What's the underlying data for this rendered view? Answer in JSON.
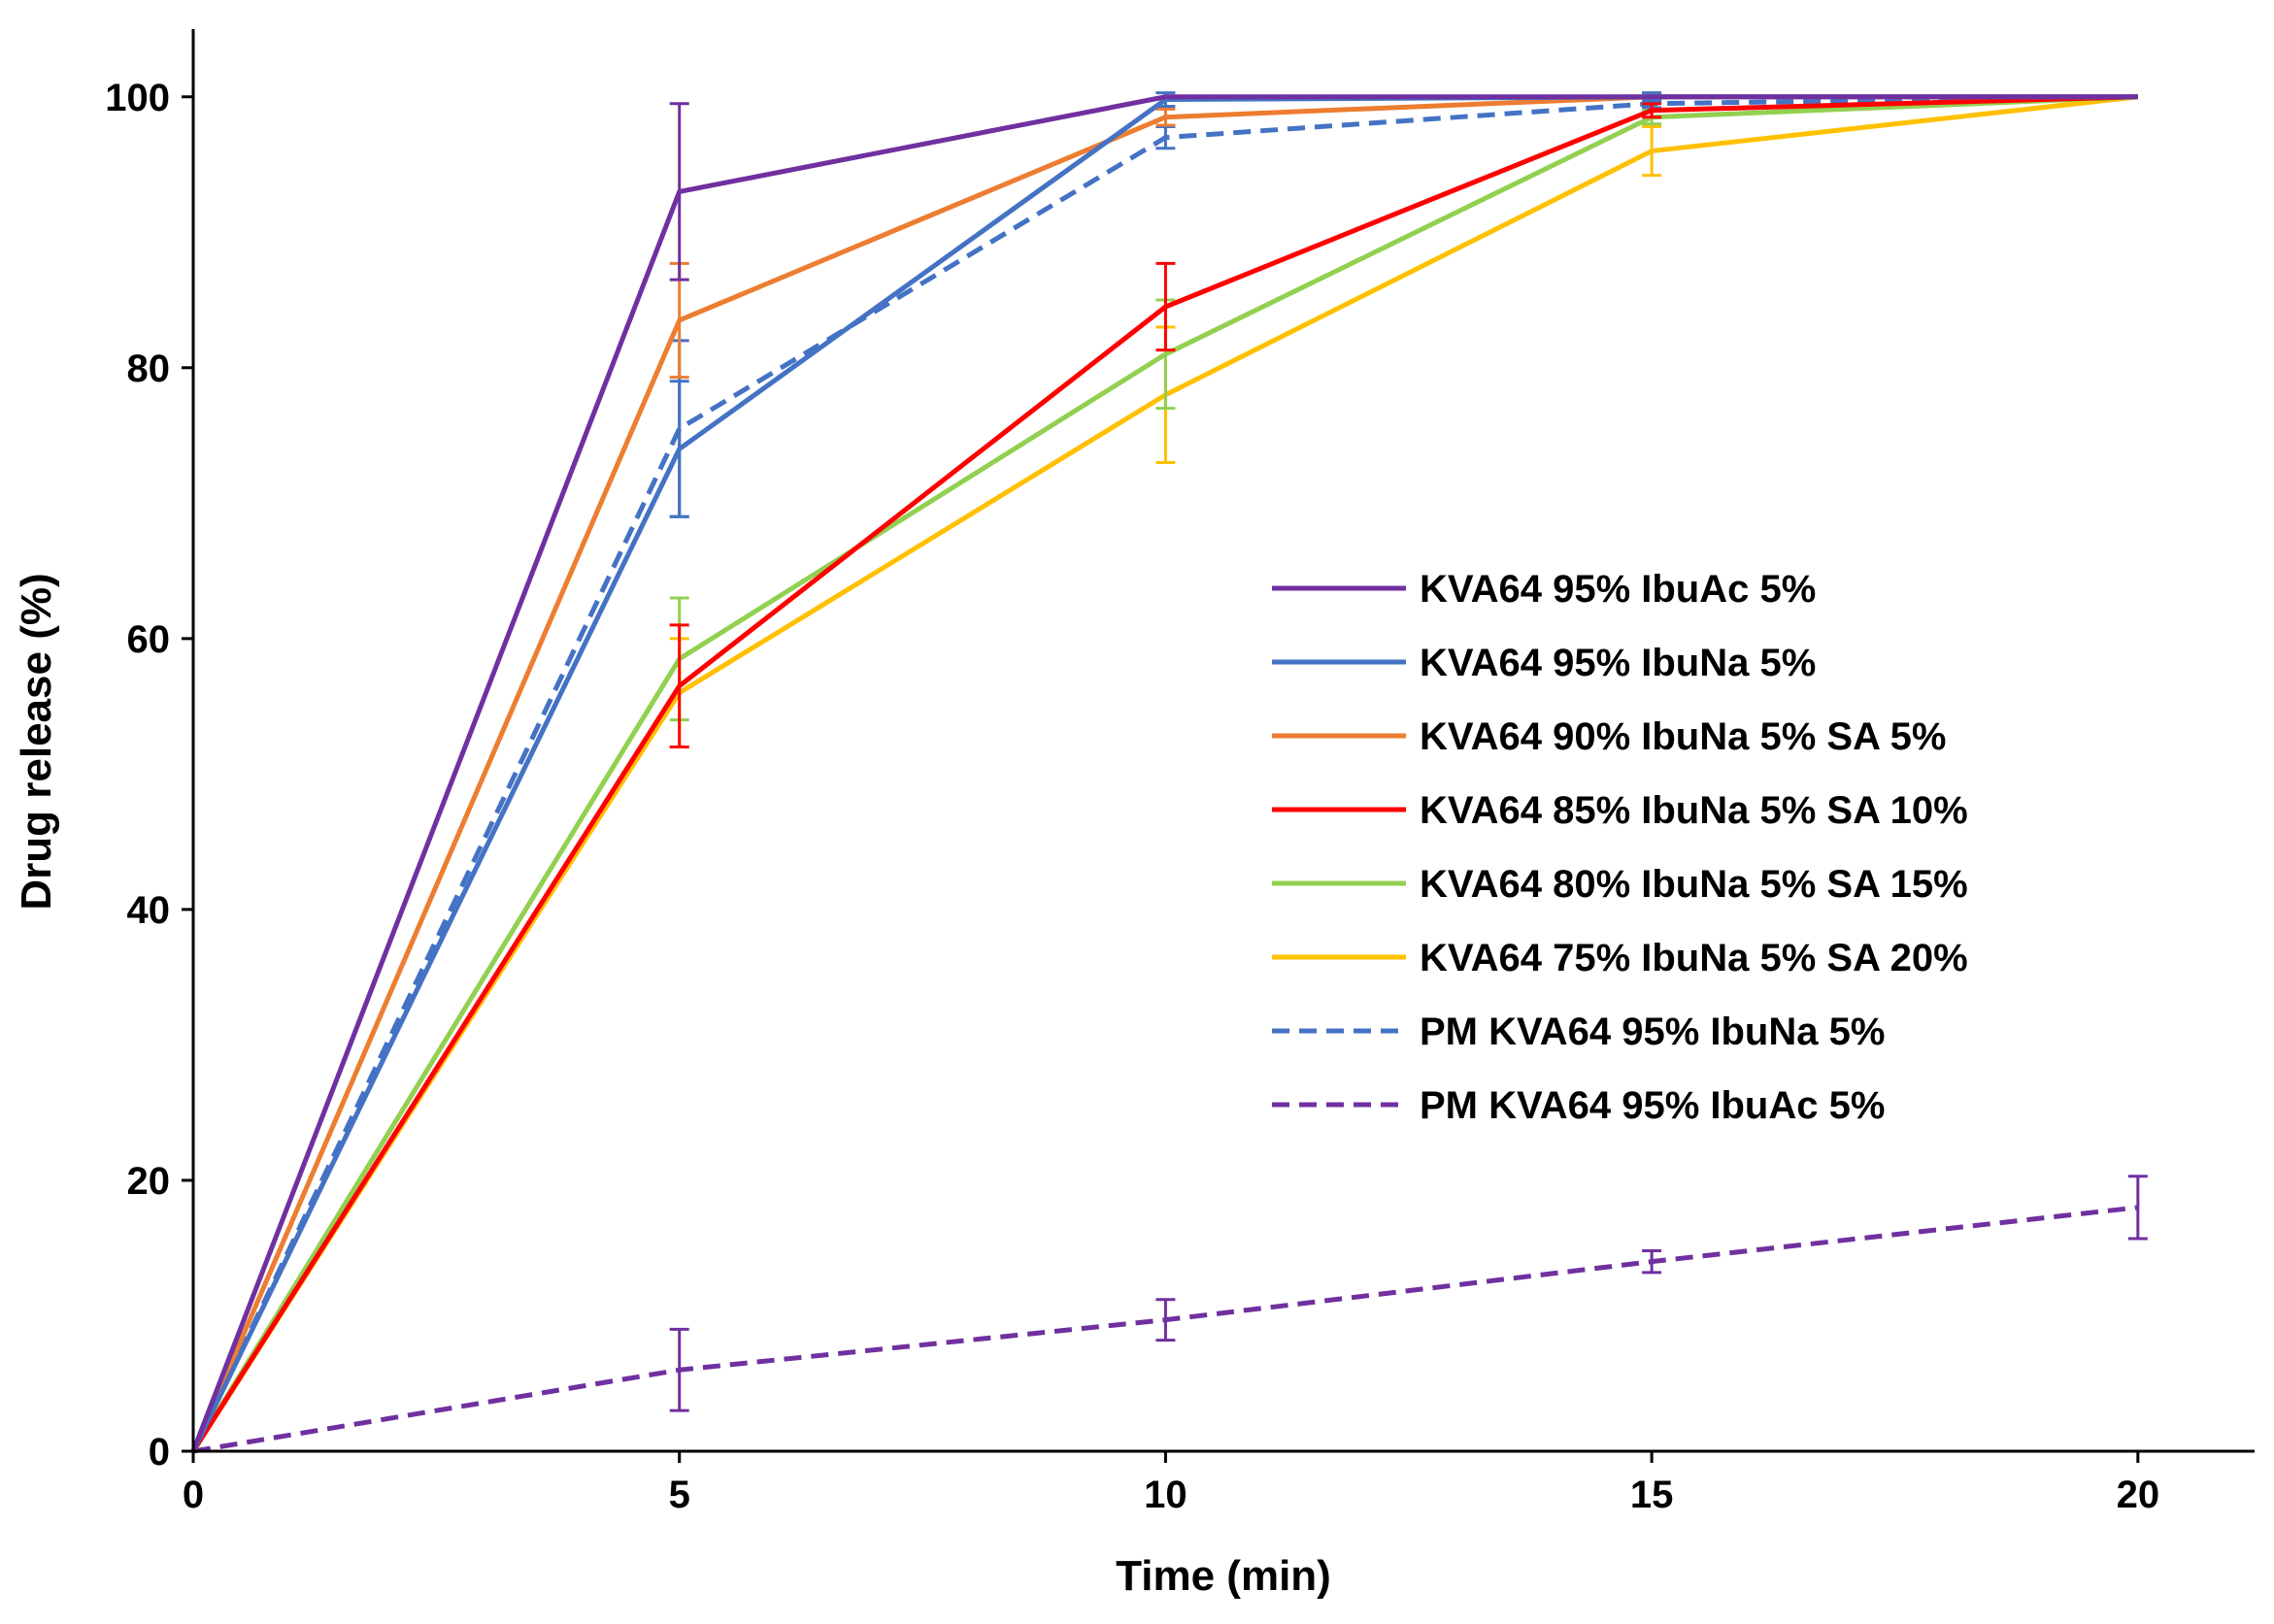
{
  "chart_data": {
    "type": "line",
    "title": "",
    "xlabel": "Time (min)",
    "ylabel": "Drug release (%)",
    "xlim": [
      0,
      21.2
    ],
    "ylim": [
      0,
      105
    ],
    "xticks": [
      0,
      5,
      10,
      15,
      20
    ],
    "yticks": [
      0,
      20,
      40,
      60,
      80,
      100
    ],
    "xtick_labels": [
      "0",
      "5",
      "10",
      "15",
      "20"
    ],
    "ytick_labels": [
      "0",
      "20",
      "40",
      "60",
      "80",
      "100"
    ],
    "grid": false,
    "legend_position": "center-right",
    "x": [
      0,
      5,
      10,
      15,
      20
    ],
    "series": [
      {
        "name": "KVA64 95% IbuAc 5%",
        "color": "#7030A0",
        "dash": "solid",
        "values": [
          0,
          93,
          100,
          100,
          100
        ],
        "errors": [
          0,
          6.5,
          0,
          0,
          0
        ]
      },
      {
        "name": "KVA64 95% IbuNa 5%",
        "color": "#4472C4",
        "dash": "solid",
        "values": [
          0,
          74,
          99.8,
          100,
          100
        ],
        "errors": [
          0,
          5,
          0.5,
          0.3,
          0
        ]
      },
      {
        "name": "KVA64 90% IbuNa 5% SA 5%",
        "color": "#ED7D31",
        "dash": "solid",
        "values": [
          0,
          83.5,
          98.5,
          100,
          100
        ],
        "errors": [
          0,
          4.2,
          0.6,
          0.3,
          0
        ]
      },
      {
        "name": "KVA64 85% IbuNa 5% SA 10%",
        "color": "#FF0000",
        "dash": "solid",
        "values": [
          0,
          56.5,
          84.5,
          99,
          100
        ],
        "errors": [
          0,
          4.5,
          3.2,
          0.5,
          0
        ]
      },
      {
        "name": "KVA64 80% IbuNa 5% SA 15%",
        "color": "#92D050",
        "dash": "solid",
        "values": [
          0,
          58.5,
          81,
          98.5,
          100
        ],
        "errors": [
          0,
          4.5,
          4,
          0.5,
          0
        ]
      },
      {
        "name": "KVA64 75% IbuNa 5% SA 20%",
        "color": "#FFC000",
        "dash": "solid",
        "values": [
          0,
          56,
          78,
          96,
          100
        ],
        "errors": [
          0,
          4,
          5,
          1.8,
          0
        ]
      },
      {
        "name": "PM KVA64 95% IbuNa 5%",
        "color": "#4472C4",
        "dash": "dashed",
        "values": [
          0,
          75.5,
          97,
          99.5,
          100
        ],
        "errors": [
          0,
          6.5,
          0.8,
          0.3,
          0
        ]
      },
      {
        "name": "PM KVA64 95% IbuAc 5%",
        "color": "#7030A0",
        "dash": "dashed",
        "values": [
          0,
          6,
          9.7,
          14,
          18
        ],
        "errors": [
          0,
          3,
          1.5,
          0.8,
          2.3
        ]
      }
    ]
  }
}
